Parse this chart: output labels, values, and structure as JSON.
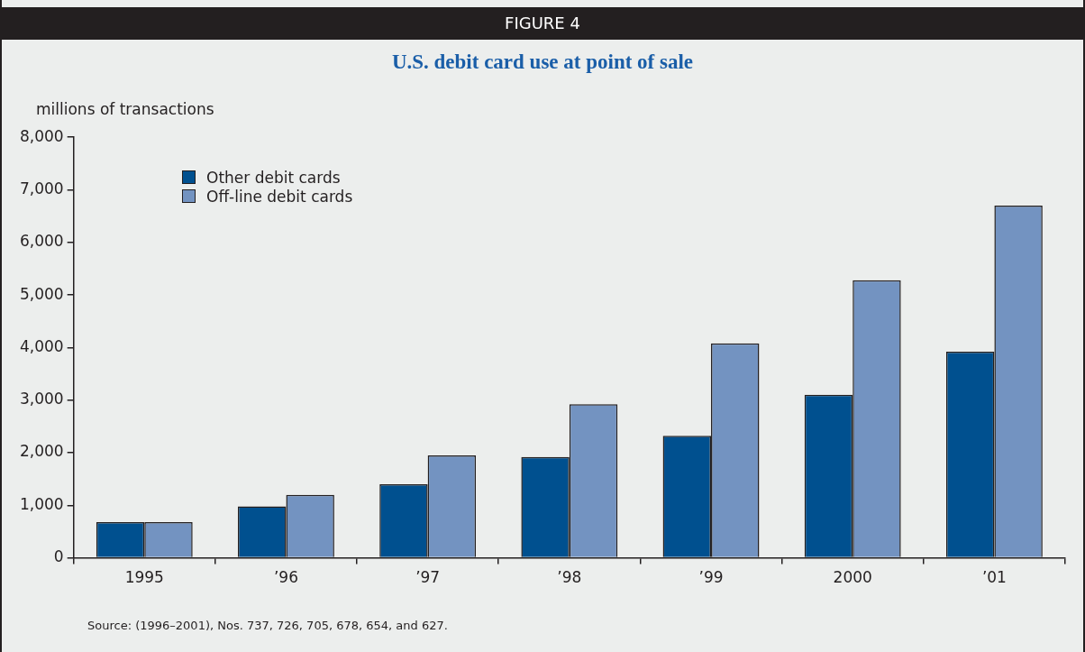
{
  "chart_data": {
    "type": "bar",
    "title": "U.S. debit card use at point of sale",
    "ylabel": "millions of transactions",
    "annotations": [
      "FIGURE 4",
      "Source: (1996–2001), Nos. 737, 726, 705, 678, 654, and 627."
    ],
    "categories": [
      "1995",
      "’96",
      "’97",
      "’98",
      "’99",
      "2000",
      "’01"
    ],
    "series": [
      {
        "name": "Other debit cards",
        "color": "#00508f",
        "values": [
          680,
          980,
          1400,
          1920,
          2320,
          3100,
          3920
        ]
      },
      {
        "name": "Off-line debit cards",
        "color": "#7393c1",
        "values": [
          680,
          1200,
          1950,
          2920,
          4080,
          5280,
          6700
        ]
      }
    ],
    "ylim": [
      0,
      8000
    ],
    "yticks": [
      {
        "value": 0,
        "label": "0"
      },
      {
        "value": 1000,
        "label": "1,000"
      },
      {
        "value": 2000,
        "label": "2,000"
      },
      {
        "value": 3000,
        "label": "3,000"
      },
      {
        "value": 4000,
        "label": "4,000"
      },
      {
        "value": 5000,
        "label": "5,000"
      },
      {
        "value": 6000,
        "label": "6,000"
      },
      {
        "value": 7000,
        "label": "7,000"
      },
      {
        "value": 8000,
        "label": "8,000"
      }
    ],
    "grid": false,
    "legend": "top left"
  }
}
